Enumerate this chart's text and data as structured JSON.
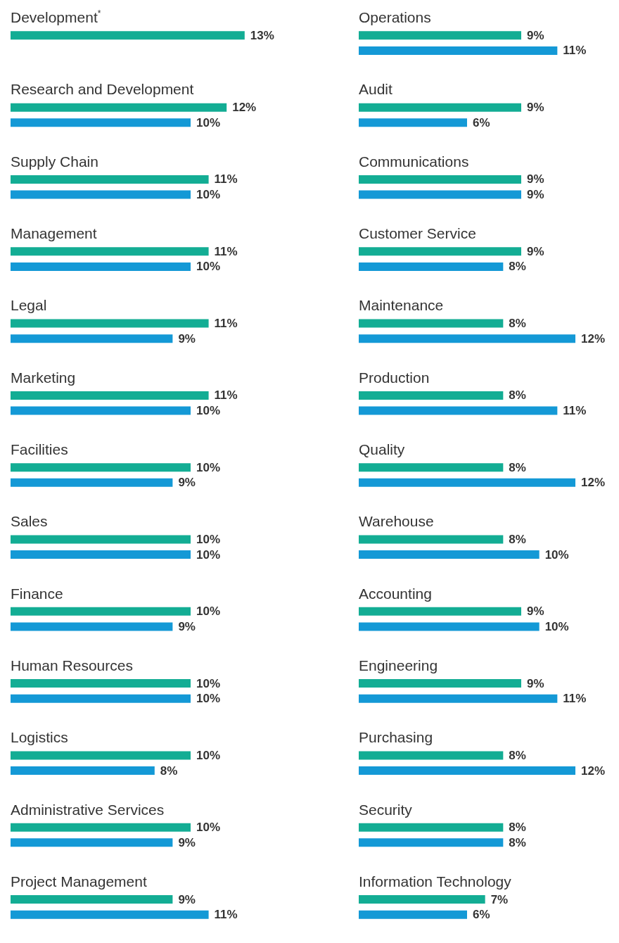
{
  "chart_data": [
    {
      "type": "bar",
      "orientation": "horizontal",
      "tick_labels": "y",
      "categories": [
        "Development$^{*}$",
        "Research and Development",
        "Supply Chain",
        "Management",
        "Legal",
        "Marketing",
        "Facilities",
        "Sales",
        "Finance",
        "Human Resources",
        "Logistics",
        "Administrative Services",
        "Project Management"
      ],
      "series": [
        {
          "color": "#13ad94",
          "values": [
            13,
            12,
            11,
            11,
            11,
            11,
            10,
            10,
            10,
            10,
            10,
            10,
            9
          ],
          "value_labels": [
            "13%",
            "12%",
            "11%",
            "11%",
            "11%",
            "11%",
            "10%",
            "10%",
            "10%",
            "10%",
            "10%",
            "10%",
            "9%"
          ]
        },
        {
          "color": "#1499d6",
          "values": [
            null,
            10,
            10,
            10,
            9,
            10,
            9,
            10,
            9,
            10,
            8,
            9,
            11
          ],
          "value_labels": [
            null,
            "10%",
            "10%",
            "10%",
            "9%",
            "10%",
            "9%",
            "10%",
            "9%",
            "10%",
            "8%",
            "9%",
            "11%"
          ]
        }
      ]
    },
    {
      "type": "bar",
      "orientation": "horizontal",
      "tick_labels": "y",
      "categories": [
        "Operations",
        "Audit",
        "Communications",
        "Customer Service",
        "Maintenance",
        "Production",
        "Quality",
        "Warehouse",
        "Accounting",
        "Engineering",
        "Purchasing",
        "Security",
        "Information Technology"
      ],
      "series": [
        {
          "color": "#13ad94",
          "values": [
            9,
            9,
            9,
            9,
            8,
            8,
            8,
            8,
            9,
            9,
            8,
            8,
            7
          ],
          "value_labels": [
            "9%",
            "9%",
            "9%",
            "9%",
            "8%",
            "8%",
            "8%",
            "8%",
            "9%",
            "9%",
            "8%",
            "8%",
            "7%"
          ]
        },
        {
          "color": "#1499d6",
          "values": [
            11,
            6,
            9,
            8,
            12,
            11,
            12,
            10,
            10,
            11,
            12,
            8,
            6
          ],
          "value_labels": [
            "11%",
            "6%",
            "9%",
            "8%",
            "12%",
            "11%",
            "12%",
            "10%",
            "10%",
            "11%",
            "12%",
            "8%",
            "6%"
          ]
        }
      ]
    }
  ]
}
